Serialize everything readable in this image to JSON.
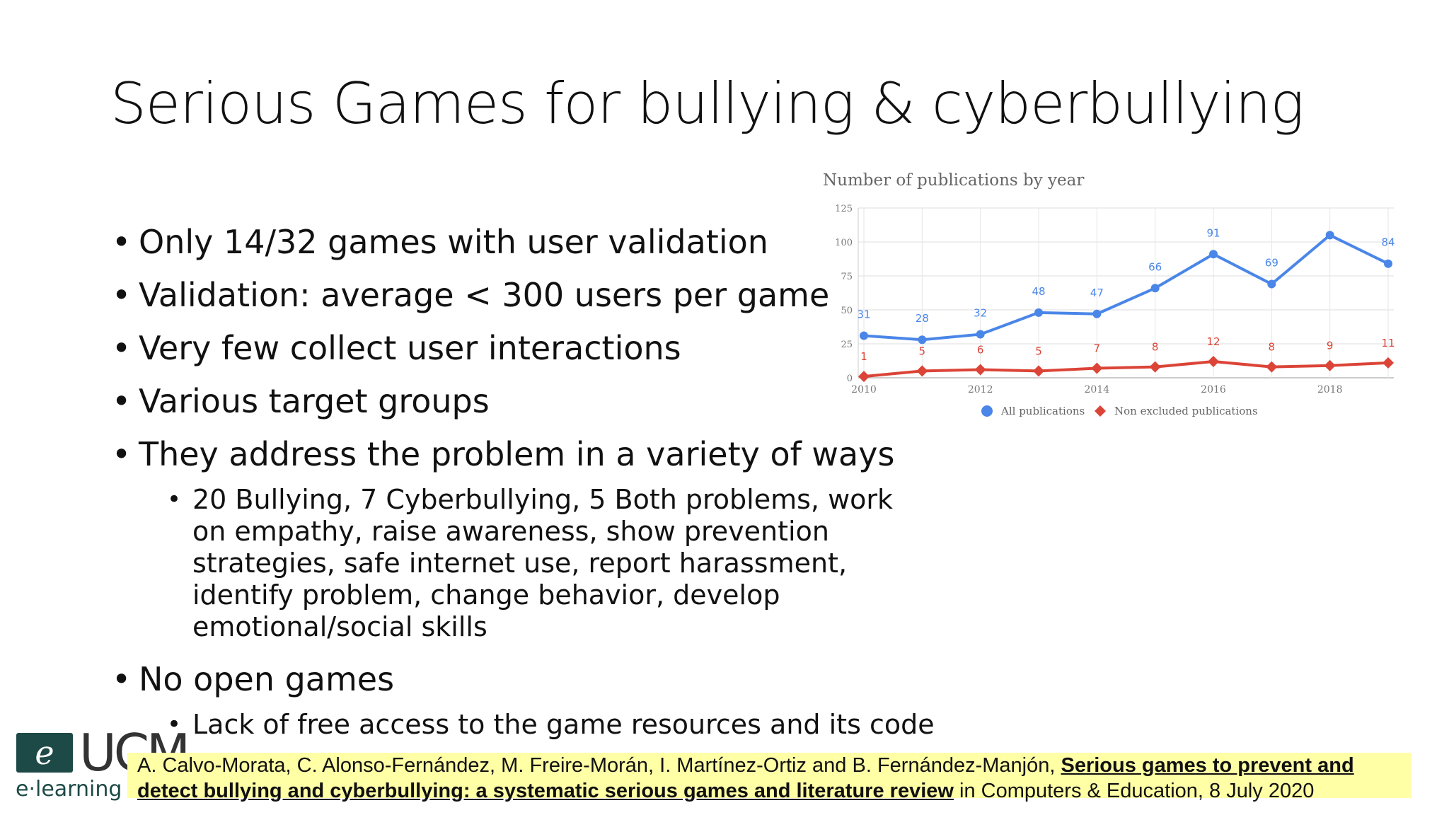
{
  "slide": {
    "title": "Serious Games for bullying & cyberbullying",
    "bullets": [
      "Only 14/32 games with user validation",
      "Validation: average < 300 users per game",
      "Very few collect user interactions",
      "Various target groups",
      "They address the problem in a variety of ways"
    ],
    "sub_bullet_ways": "20 Bullying, 7 Cyberbullying, 5 Both problems, work on empathy, raise awareness, show prevention strategies, safe internet use, report harassment, identify problem, change behavior, develop emotional/social skills",
    "bullet_open": "No open games",
    "sub_bullet_open": "Lack of free access to the game resources and its code"
  },
  "citation": {
    "authors": "A. Calvo-Morata, C. Alonso-Fernández, M. Freire-Morán, I. Martínez-Ortiz and B. Fernández-Manjón, ",
    "paper_title": "Serious games to prevent and detect bullying and cyberbullying: a systematic serious games and literature review",
    "venue": " in Computers & Education, 8 July 2020"
  },
  "logo": {
    "icon_letter": "e",
    "brand": "UCM",
    "subtitle": "e·learning"
  },
  "chart_data": {
    "type": "line",
    "title": "Number of publications by year",
    "x": [
      2010,
      2011,
      2012,
      2013,
      2014,
      2015,
      2016,
      2017,
      2018,
      2019
    ],
    "x_tick_labels": [
      "2010",
      "2012",
      "2014",
      "2016",
      "2018"
    ],
    "ylim": [
      0,
      125
    ],
    "y_ticks": [
      0,
      25,
      50,
      75,
      100,
      125
    ],
    "grid": true,
    "legend_position": "bottom",
    "series": [
      {
        "name": "All publications",
        "color": "#4a86e8",
        "marker": "circle",
        "values": [
          31,
          28,
          32,
          48,
          47,
          66,
          91,
          69,
          105,
          84
        ],
        "labels": [
          "31",
          "28",
          "32",
          "48",
          "47",
          "66",
          "91",
          "69",
          "",
          "84"
        ]
      },
      {
        "name": "Non excluded publications",
        "color": "#db4437",
        "marker": "diamond",
        "values": [
          1,
          5,
          6,
          5,
          7,
          8,
          12,
          8,
          9,
          11
        ],
        "labels": [
          "1",
          "5",
          "6",
          "5",
          "7",
          "8",
          "12",
          "8",
          "9",
          "11"
        ]
      }
    ]
  }
}
